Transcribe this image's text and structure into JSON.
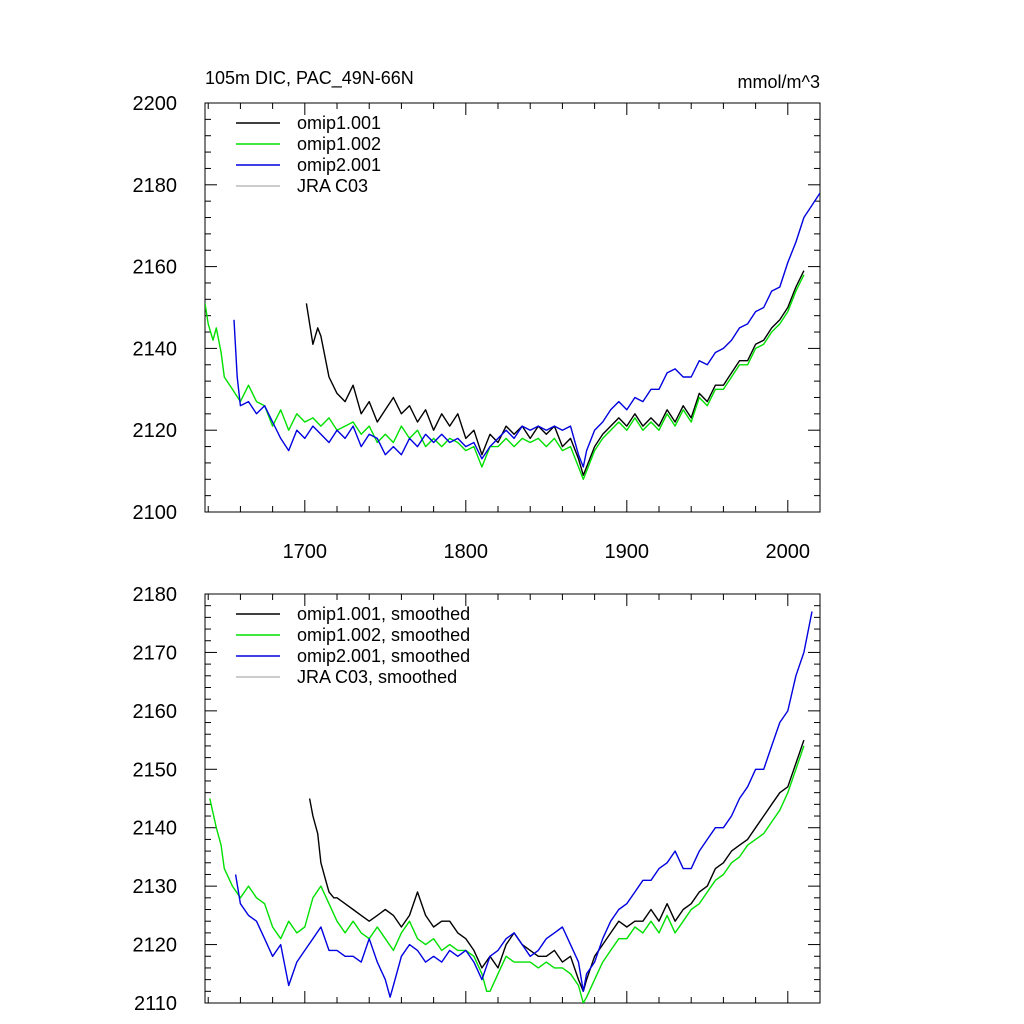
{
  "top_title": "105m DIC, PAC_49N-66N",
  "units": "mmol/m^3",
  "colors": {
    "omip1_001": "#000000",
    "omip1_002": "#00e000",
    "omip2_001": "#0000e0",
    "jra": "#bbbbbb"
  },
  "chart_data": [
    {
      "type": "line",
      "xlim": [
        1638,
        2020
      ],
      "ylim": [
        2100,
        2200
      ],
      "xticks": [
        1700,
        1800,
        1900,
        2000
      ],
      "yticks": [
        2100,
        2120,
        2140,
        2160,
        2180,
        2200
      ],
      "legend_position": "top-left",
      "series": [
        {
          "name": "omip1.001",
          "color": "#000000",
          "x": [
            1701,
            1705,
            1708,
            1710,
            1715,
            1720,
            1725,
            1730,
            1735,
            1740,
            1745,
            1750,
            1755,
            1760,
            1765,
            1770,
            1775,
            1780,
            1785,
            1790,
            1795,
            1800,
            1805,
            1810,
            1815,
            1820,
            1825,
            1830,
            1835,
            1840,
            1845,
            1850,
            1855,
            1860,
            1865,
            1870,
            1873,
            1875,
            1880,
            1885,
            1890,
            1895,
            1900,
            1905,
            1910,
            1915,
            1920,
            1925,
            1930,
            1935,
            1940,
            1945,
            1950,
            1955,
            1960,
            1965,
            1970,
            1975,
            1980,
            1985,
            1990,
            1995,
            2000,
            2005,
            2010
          ],
          "y": [
            2151,
            2141,
            2145,
            2143,
            2133,
            2129,
            2127,
            2131,
            2124,
            2127,
            2122,
            2125,
            2128,
            2124,
            2126,
            2122,
            2125,
            2120,
            2124,
            2121,
            2124,
            2118,
            2120,
            2114,
            2119,
            2117,
            2121,
            2119,
            2121,
            2118,
            2121,
            2119,
            2121,
            2116,
            2118,
            2113,
            2109,
            2111,
            2116,
            2119,
            2121,
            2123,
            2121,
            2124,
            2121,
            2123,
            2121,
            2125,
            2122,
            2126,
            2123,
            2129,
            2127,
            2131,
            2131,
            2134,
            2137,
            2137,
            2141,
            2142,
            2145,
            2147,
            2150,
            2155,
            2159
          ]
        },
        {
          "name": "omip1.002",
          "color": "#00e000",
          "x": [
            1638,
            1640,
            1643,
            1645,
            1648,
            1650,
            1655,
            1660,
            1665,
            1670,
            1675,
            1680,
            1685,
            1690,
            1695,
            1700,
            1705,
            1710,
            1715,
            1720,
            1725,
            1730,
            1735,
            1740,
            1745,
            1750,
            1755,
            1760,
            1765,
            1770,
            1775,
            1780,
            1785,
            1790,
            1795,
            1800,
            1805,
            1810,
            1815,
            1820,
            1825,
            1830,
            1835,
            1840,
            1845,
            1850,
            1855,
            1860,
            1865,
            1870,
            1873,
            1875,
            1880,
            1885,
            1890,
            1895,
            1900,
            1905,
            1910,
            1915,
            1920,
            1925,
            1930,
            1935,
            1940,
            1945,
            1950,
            1955,
            1960,
            1965,
            1970,
            1975,
            1980,
            1985,
            1990,
            1995,
            2000,
            2005,
            2010
          ],
          "y": [
            2151,
            2146,
            2142,
            2145,
            2139,
            2133,
            2130,
            2127,
            2131,
            2127,
            2126,
            2121,
            2125,
            2120,
            2124,
            2122,
            2123,
            2121,
            2123,
            2120,
            2121,
            2122,
            2119,
            2121,
            2117,
            2119,
            2117,
            2121,
            2118,
            2120,
            2116,
            2118,
            2116,
            2118,
            2117,
            2115,
            2116,
            2111,
            2116,
            2116,
            2118,
            2116,
            2118,
            2117,
            2118,
            2116,
            2118,
            2115,
            2116,
            2111,
            2108,
            2110,
            2115,
            2118,
            2120,
            2122,
            2120,
            2123,
            2120,
            2122,
            2120,
            2124,
            2121,
            2125,
            2122,
            2128,
            2126,
            2130,
            2130,
            2133,
            2136,
            2136,
            2140,
            2141,
            2144,
            2146,
            2149,
            2154,
            2158
          ]
        },
        {
          "name": "omip2.001",
          "color": "#0000e0",
          "x": [
            1656,
            1658,
            1660,
            1665,
            1670,
            1675,
            1680,
            1685,
            1690,
            1695,
            1700,
            1705,
            1710,
            1715,
            1720,
            1725,
            1730,
            1735,
            1740,
            1745,
            1750,
            1755,
            1760,
            1765,
            1770,
            1775,
            1780,
            1785,
            1790,
            1795,
            1800,
            1805,
            1810,
            1815,
            1820,
            1825,
            1830,
            1835,
            1840,
            1845,
            1850,
            1855,
            1860,
            1865,
            1870,
            1873,
            1875,
            1880,
            1885,
            1890,
            1895,
            1900,
            1905,
            1910,
            1915,
            1920,
            1925,
            1930,
            1935,
            1940,
            1945,
            1950,
            1955,
            1960,
            1965,
            1970,
            1975,
            1980,
            1985,
            1990,
            1995,
            2000,
            2005,
            2010,
            2015,
            2020
          ],
          "y": [
            2147,
            2133,
            2126,
            2127,
            2124,
            2126,
            2122,
            2118,
            2115,
            2120,
            2118,
            2121,
            2119,
            2117,
            2120,
            2118,
            2121,
            2116,
            2119,
            2118,
            2114,
            2116,
            2114,
            2118,
            2116,
            2119,
            2117,
            2119,
            2117,
            2118,
            2116,
            2117,
            2113,
            2116,
            2118,
            2120,
            2118,
            2121,
            2120,
            2121,
            2120,
            2121,
            2120,
            2121,
            2114,
            2111,
            2115,
            2120,
            2122,
            2125,
            2127,
            2125,
            2128,
            2127,
            2130,
            2130,
            2134,
            2135,
            2133,
            2133,
            2137,
            2136,
            2139,
            2140,
            2142,
            2145,
            2146,
            2149,
            2150,
            2154,
            2155,
            2161,
            2166,
            2172,
            2175,
            2178
          ]
        },
        {
          "name": "JRA C03",
          "color": "#bbbbbb",
          "x": [],
          "y": []
        }
      ]
    },
    {
      "type": "line",
      "xlim": [
        1638,
        2020
      ],
      "ylim": [
        2110,
        2180
      ],
      "xticks": [
        1700,
        1800,
        1900,
        2000
      ],
      "yticks": [
        2110,
        2120,
        2130,
        2140,
        2150,
        2160,
        2170,
        2180
      ],
      "legend_position": "top-left",
      "series": [
        {
          "name": "omip1.001, smoothed",
          "color": "#000000",
          "x": [
            1703,
            1705,
            1708,
            1710,
            1713,
            1715,
            1718,
            1720,
            1725,
            1730,
            1735,
            1740,
            1745,
            1750,
            1755,
            1760,
            1765,
            1770,
            1775,
            1780,
            1785,
            1790,
            1795,
            1800,
            1805,
            1810,
            1815,
            1820,
            1825,
            1830,
            1835,
            1840,
            1845,
            1850,
            1855,
            1860,
            1865,
            1870,
            1873,
            1875,
            1880,
            1885,
            1890,
            1895,
            1900,
            1905,
            1910,
            1915,
            1920,
            1925,
            1930,
            1935,
            1940,
            1945,
            1950,
            1955,
            1960,
            1965,
            1970,
            1975,
            1980,
            1985,
            1990,
            1995,
            2000,
            2005,
            2010
          ],
          "y": [
            2145,
            2142,
            2139,
            2134,
            2131,
            2129,
            2128,
            2128,
            2127,
            2126,
            2125,
            2124,
            2125,
            2126,
            2125,
            2123,
            2125,
            2129,
            2125,
            2123,
            2124,
            2124,
            2122,
            2121,
            2119,
            2116,
            2118,
            2116,
            2120,
            2122,
            2120,
            2119,
            2118,
            2118,
            2119,
            2117,
            2118,
            2114,
            2112,
            2114,
            2118,
            2120,
            2122,
            2124,
            2123,
            2124,
            2124,
            2126,
            2124,
            2127,
            2124,
            2126,
            2127,
            2129,
            2130,
            2133,
            2134,
            2136,
            2137,
            2138,
            2140,
            2142,
            2144,
            2146,
            2147,
            2151,
            2155
          ]
        },
        {
          "name": "omip1.002, smoothed",
          "color": "#00e000",
          "x": [
            1641,
            1645,
            1648,
            1650,
            1655,
            1660,
            1665,
            1670,
            1675,
            1680,
            1685,
            1690,
            1695,
            1700,
            1705,
            1710,
            1715,
            1720,
            1725,
            1730,
            1735,
            1740,
            1745,
            1750,
            1755,
            1760,
            1765,
            1770,
            1775,
            1780,
            1785,
            1790,
            1795,
            1800,
            1805,
            1810,
            1813,
            1815,
            1820,
            1825,
            1830,
            1835,
            1840,
            1845,
            1850,
            1855,
            1860,
            1865,
            1870,
            1873,
            1875,
            1880,
            1885,
            1890,
            1895,
            1900,
            1905,
            1910,
            1915,
            1920,
            1925,
            1930,
            1935,
            1940,
            1945,
            1950,
            1955,
            1960,
            1965,
            1970,
            1975,
            1980,
            1985,
            1990,
            1995,
            2000,
            2005,
            2010
          ],
          "y": [
            2145,
            2140,
            2137,
            2133,
            2130,
            2128,
            2130,
            2128,
            2127,
            2123,
            2121,
            2124,
            2122,
            2123,
            2128,
            2130,
            2127,
            2124,
            2122,
            2124,
            2122,
            2121,
            2123,
            2121,
            2119,
            2122,
            2124,
            2121,
            2120,
            2121,
            2119,
            2120,
            2119,
            2119,
            2118,
            2115,
            2112,
            2112,
            2115,
            2118,
            2117,
            2117,
            2117,
            2116,
            2117,
            2116,
            2116,
            2115,
            2113,
            2110,
            2111,
            2114,
            2117,
            2119,
            2121,
            2121,
            2123,
            2122,
            2124,
            2122,
            2125,
            2122,
            2124,
            2126,
            2127,
            2129,
            2131,
            2132,
            2134,
            2135,
            2137,
            2138,
            2139,
            2141,
            2143,
            2146,
            2150,
            2154
          ]
        },
        {
          "name": "omip2.001, smoothed",
          "color": "#0000e0",
          "x": [
            1657,
            1660,
            1665,
            1670,
            1675,
            1680,
            1685,
            1690,
            1695,
            1700,
            1705,
            1710,
            1715,
            1720,
            1725,
            1730,
            1735,
            1740,
            1745,
            1750,
            1753,
            1755,
            1760,
            1765,
            1770,
            1775,
            1780,
            1785,
            1790,
            1795,
            1800,
            1805,
            1810,
            1815,
            1820,
            1825,
            1830,
            1835,
            1840,
            1845,
            1850,
            1855,
            1860,
            1865,
            1870,
            1873,
            1875,
            1880,
            1885,
            1890,
            1895,
            1900,
            1905,
            1910,
            1915,
            1920,
            1925,
            1930,
            1935,
            1940,
            1945,
            1950,
            1955,
            1960,
            1965,
            1970,
            1975,
            1980,
            1985,
            1990,
            1995,
            2000,
            2005,
            2010,
            2015
          ],
          "y": [
            2132,
            2127,
            2125,
            2124,
            2121,
            2118,
            2120,
            2113,
            2117,
            2119,
            2121,
            2123,
            2119,
            2119,
            2118,
            2118,
            2117,
            2121,
            2117,
            2114,
            2111,
            2113,
            2118,
            2120,
            2119,
            2117,
            2118,
            2117,
            2119,
            2118,
            2119,
            2117,
            2114,
            2118,
            2119,
            2121,
            2122,
            2120,
            2118,
            2119,
            2121,
            2122,
            2123,
            2120,
            2117,
            2112,
            2115,
            2117,
            2121,
            2124,
            2126,
            2127,
            2129,
            2131,
            2131,
            2133,
            2134,
            2136,
            2133,
            2133,
            2136,
            2138,
            2140,
            2140,
            2142,
            2145,
            2147,
            2150,
            2150,
            2154,
            2158,
            2160,
            2166,
            2170,
            2177
          ]
        },
        {
          "name": "JRA C03, smoothed",
          "color": "#bbbbbb",
          "x": [],
          "y": []
        }
      ]
    }
  ]
}
